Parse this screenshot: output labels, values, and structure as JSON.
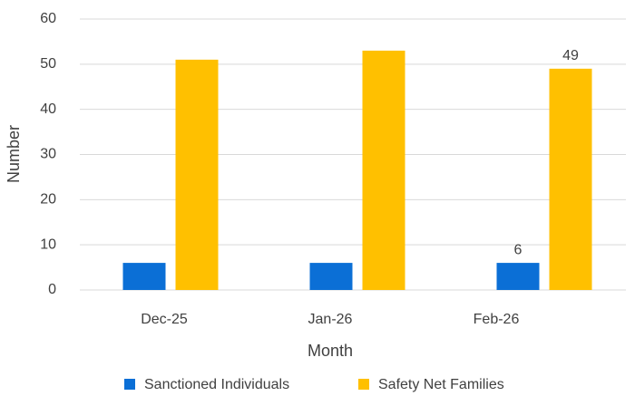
{
  "chart_data": {
    "type": "bar",
    "categories": [
      "Dec-25",
      "Jan-26",
      "Feb-26"
    ],
    "series": [
      {
        "name": "Sanctioned Individuals",
        "color": "#0b6fd6",
        "values": [
          6,
          6,
          6
        ],
        "value_labels": [
          null,
          null,
          "6"
        ]
      },
      {
        "name": "Safety Net Families",
        "color": "#ffc000",
        "values": [
          51,
          53,
          49
        ],
        "value_labels": [
          null,
          null,
          "49"
        ]
      }
    ],
    "ylim": [
      0,
      60
    ],
    "yticks": [
      0,
      10,
      20,
      30,
      40,
      50,
      60
    ],
    "grid": true,
    "xlabel": "Month",
    "ylabel": "Number",
    "legend": "bottom"
  }
}
